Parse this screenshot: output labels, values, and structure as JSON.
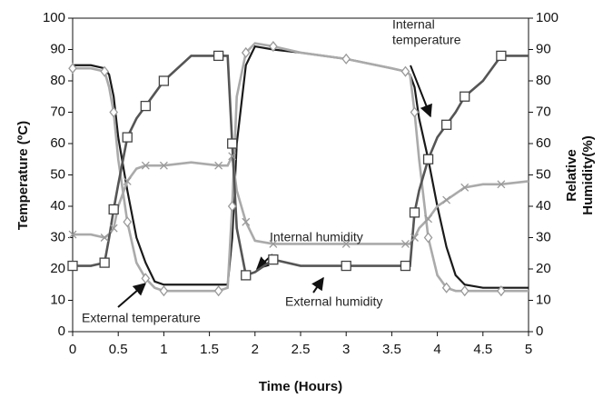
{
  "chart_data": {
    "type": "line",
    "xlabel": "Time (Hours)",
    "ylabel": "Temperature (ºC)",
    "y2label": [
      "Relative",
      "Humidity(%)"
    ],
    "x": [
      0,
      0.2,
      0.35,
      0.4,
      0.45,
      0.5,
      0.6,
      0.7,
      0.8,
      0.9,
      1,
      1.3,
      1.6,
      1.7,
      1.75,
      1.8,
      1.9,
      2,
      2.2,
      2.5,
      3,
      3.5,
      3.65,
      3.7,
      3.75,
      3.8,
      3.9,
      4,
      4.1,
      4.2,
      4.3,
      4.5,
      4.7,
      5
    ],
    "xlim": [
      0,
      5
    ],
    "xticks": [
      0,
      0.5,
      1,
      1.5,
      2,
      2.5,
      3,
      3.5,
      4,
      4.5,
      5
    ],
    "ylim": [
      0,
      100
    ],
    "yticks": [
      0,
      10,
      20,
      30,
      40,
      50,
      60,
      70,
      80,
      90,
      100
    ],
    "y2lim": [
      0,
      100
    ],
    "y2ticks": [
      0,
      10,
      20,
      30,
      40,
      50,
      60,
      70,
      80,
      90,
      100
    ],
    "series": [
      {
        "name": "Internal temperature",
        "color": "#1a1a1a",
        "marker": "none",
        "values": [
          85,
          85,
          84,
          82,
          75,
          62,
          45,
          30,
          22,
          16,
          15,
          15,
          15,
          15,
          30,
          60,
          85,
          91,
          90,
          89,
          87,
          84,
          83,
          82,
          78,
          68,
          55,
          40,
          27,
          18,
          15,
          14,
          14,
          14
        ]
      },
      {
        "name": "External temperature",
        "color": "#aaaaaa",
        "marker": "diamond",
        "values": [
          84,
          84,
          83,
          78,
          70,
          55,
          35,
          22,
          17,
          14,
          13,
          13,
          13,
          14,
          40,
          75,
          89,
          92,
          91,
          89,
          87,
          84,
          83,
          82,
          70,
          55,
          30,
          18,
          14,
          13,
          13,
          13,
          13,
          13
        ]
      },
      {
        "name": "Internal humidity",
        "color": "#aaaaaa",
        "marker": "x",
        "axis": "y2",
        "values": [
          31,
          31,
          30,
          31,
          33,
          40,
          48,
          52,
          53,
          53,
          53,
          54,
          53,
          53,
          56,
          45,
          35,
          29,
          28,
          28,
          28,
          28,
          28,
          28,
          30,
          33,
          36,
          40,
          42,
          44,
          46,
          47,
          47,
          48
        ]
      },
      {
        "name": "External humidity",
        "color": "#555555",
        "marker": "square",
        "axis": "y2",
        "values": [
          21,
          21,
          22,
          30,
          39,
          47,
          62,
          68,
          72,
          76,
          80,
          88,
          88,
          88,
          60,
          33,
          18,
          19,
          23,
          21,
          21,
          21,
          21,
          21,
          38,
          45,
          55,
          62,
          66,
          70,
          75,
          80,
          88,
          88
        ]
      }
    ],
    "annotations": [
      {
        "lines": [
          "Internal",
          "temperature"
        ]
      },
      {
        "lines": [
          "Internal humidity"
        ]
      },
      {
        "lines": [
          "External humidity"
        ]
      },
      {
        "lines": [
          "External temperature"
        ]
      }
    ]
  }
}
